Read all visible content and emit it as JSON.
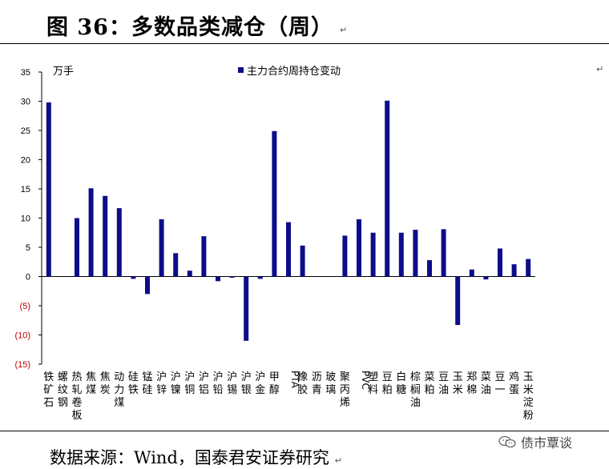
{
  "page": {
    "title": "图 36：多数品类减仓（周）",
    "source": "数据来源：Wind，国泰君安证券研究",
    "watermark": "债市覃谈",
    "return_mark": "↵"
  },
  "colors": {
    "bar": "#0d0d8a",
    "negative_tick": "#c00000",
    "axis": "#000000"
  },
  "chart_data": {
    "type": "bar",
    "unit_label": "万手",
    "legend": "主力合约周持仓变动",
    "ylim": [
      -15,
      35
    ],
    "yticks": [
      {
        "value": 35,
        "label": "35"
      },
      {
        "value": 30,
        "label": "30"
      },
      {
        "value": 25,
        "label": "25"
      },
      {
        "value": 20,
        "label": "20"
      },
      {
        "value": 15,
        "label": "15"
      },
      {
        "value": 10,
        "label": "10"
      },
      {
        "value": 5,
        "label": "5"
      },
      {
        "value": 0,
        "label": "0"
      },
      {
        "value": -5,
        "label": "(5)"
      },
      {
        "value": -10,
        "label": "(10)"
      },
      {
        "value": -15,
        "label": "(15)"
      }
    ],
    "categories": [
      "铁矿石",
      "螺纹钢",
      "热轧卷板",
      "焦煤",
      "焦炭",
      "动力煤",
      "硅铁",
      "锰硅",
      "沪锌",
      "沪镍",
      "沪铜",
      "沪铝",
      "沪铅",
      "沪锡",
      "沪银",
      "沪金",
      "甲醇",
      "PTA",
      "橡胶",
      "沥青",
      "玻璃",
      "聚丙烯",
      "PVC",
      "塑料",
      "豆粕",
      "白糖",
      "棕榈油",
      "菜粕",
      "豆油",
      "玉米",
      "郑棉",
      "菜油",
      "豆一",
      "鸡蛋",
      "玉米淀粉"
    ],
    "values": [
      29.8,
      0,
      10.0,
      15.1,
      13.8,
      11.7,
      -0.4,
      -3.0,
      9.8,
      4.0,
      1.0,
      6.9,
      -0.8,
      -0.2,
      -11.0,
      -0.4,
      24.9,
      9.3,
      5.3,
      0,
      0,
      7.0,
      9.8,
      7.5,
      30.1,
      7.5,
      8.0,
      2.8,
      8.1,
      -8.3,
      1.2,
      -0.5,
      4.8,
      2.1,
      3.0
    ]
  }
}
